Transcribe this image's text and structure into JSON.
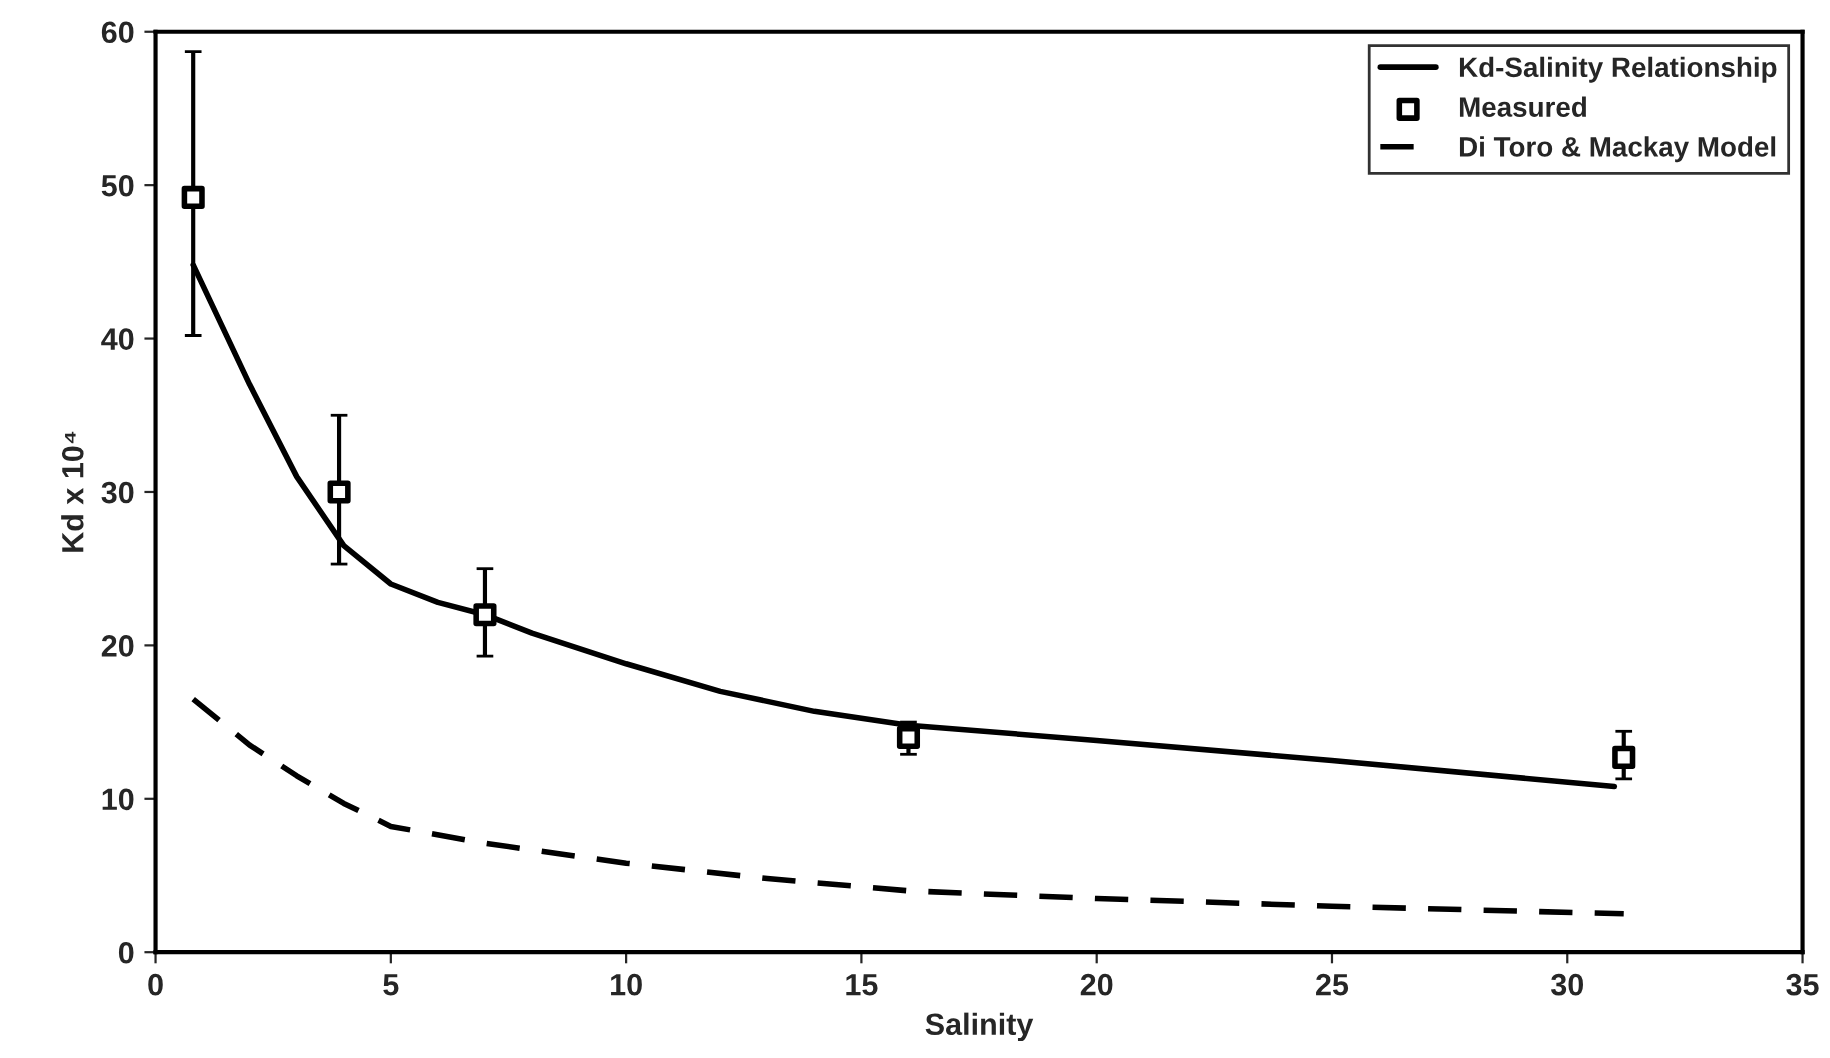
{
  "chart_data": {
    "type": "line",
    "xlabel": "Salinity",
    "ylabel": "Kd x 10⁴",
    "xlim": [
      0,
      35
    ],
    "xticks": [
      0,
      5,
      10,
      15,
      20,
      25,
      30,
      35
    ],
    "ylim": [
      0,
      60
    ],
    "yticks": [
      0,
      10,
      20,
      30,
      40,
      50,
      60
    ],
    "grid": false,
    "legend": "top right",
    "series": [
      {
        "name": "Kd-Salinity Relationship",
        "line_style": "solid",
        "color": "#000000",
        "x": [
          0.8,
          2,
          3,
          4,
          5,
          6,
          7,
          8,
          10,
          12,
          14,
          16,
          20,
          25,
          31
        ],
        "values": [
          44.8,
          37,
          31,
          26.5,
          24,
          22.8,
          22,
          20.8,
          18.8,
          17,
          15.7,
          14.8,
          13.8,
          12.5,
          10.8
        ]
      },
      {
        "name": "Measured",
        "type": "scatter",
        "marker": "square",
        "color": "#000000",
        "x": [
          0.8,
          3.9,
          7,
          16,
          31.2
        ],
        "values": [
          49.2,
          30,
          22,
          14,
          12.7
        ],
        "errors": [
          [
            40.2,
            58.7
          ],
          [
            25.3,
            35
          ],
          [
            19.3,
            25
          ],
          [
            12.9,
            15
          ],
          [
            11.3,
            14.4
          ]
        ]
      },
      {
        "name": "Di Toro & Mackay Model",
        "line_style": "dashed",
        "color": "#000000",
        "x": [
          0.8,
          2,
          3,
          4,
          5,
          7,
          10,
          13,
          16,
          20,
          25,
          31.2
        ],
        "values": [
          16.5,
          13.5,
          11.5,
          9.7,
          8.2,
          7.1,
          5.8,
          4.8,
          4.0,
          3.5,
          3.0,
          2.5
        ]
      }
    ]
  }
}
